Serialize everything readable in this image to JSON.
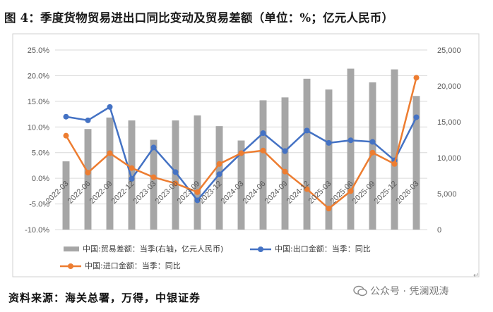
{
  "title": "图 4：季度货物贸易进出口同比变动及贸易差额（单位：%；亿元人民币）",
  "source": "资料来源：海关总署，万得，中银证券",
  "watermark": "公众号 · 凭澜观涛",
  "colors": {
    "bar": "#a6a6a6",
    "export": "#4472c4",
    "import": "#ed7d31",
    "grid": "#d9d9d9"
  },
  "chart_data": {
    "type": "bar",
    "categories": [
      "2022-03",
      "2022-06",
      "2022-09",
      "2022-12",
      "2023-03",
      "2023-06",
      "2023-09",
      "2023-12",
      "2024-03",
      "2024-06",
      "2024-09",
      "2024-12",
      "2025-03",
      "2025-06",
      "2025-09",
      "2025-12",
      "2026-03"
    ],
    "y_left": {
      "ylim": [
        -10,
        25
      ],
      "ticks": [
        "25.0%",
        "20.0%",
        "15.0%",
        "10.0%",
        "5.0%",
        "0.0%",
        "-5.0%",
        "-10.0%"
      ]
    },
    "y_right": {
      "ylim": [
        0,
        25000
      ],
      "ticks": [
        "25,000",
        "20,000",
        "15,000",
        "10,000",
        "5,000",
        "0"
      ]
    },
    "grid": true,
    "legend_position": "bottom",
    "series": [
      {
        "name": "中国:贸易差额：当季(右轴，亿元人民币)",
        "type": "bar",
        "axis": "right",
        "values": [
          9500,
          14000,
          15600,
          15200,
          12500,
          15200,
          15900,
          14400,
          12400,
          18000,
          18400,
          21000,
          19500,
          22400,
          20500,
          22300,
          18600
        ]
      },
      {
        "name": "中国:出口金额：当季：同比",
        "type": "line",
        "axis": "left",
        "values": [
          12.0,
          11.3,
          13.9,
          -0.1,
          6.0,
          1.2,
          -4.3,
          0.8,
          4.9,
          8.8,
          5.3,
          9.3,
          6.9,
          7.4,
          7.1,
          3.5,
          11.9
        ]
      },
      {
        "name": "中国:进口金额：当季：同比",
        "type": "line",
        "axis": "left",
        "values": [
          8.3,
          1.1,
          4.9,
          2.0,
          0.2,
          -1.0,
          -2.7,
          2.8,
          4.9,
          5.4,
          1.3,
          -2.1,
          -5.9,
          -2.5,
          5.0,
          2.8,
          19.6
        ]
      }
    ]
  }
}
